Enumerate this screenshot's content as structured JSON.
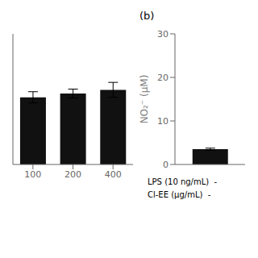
{
  "chart_data": [
    {
      "type": "bar",
      "categories": [
        "100",
        "200",
        "400"
      ],
      "values": [
        98,
        99,
        100
      ],
      "errors": [
        1.5,
        1.2,
        2.0
      ],
      "color": "#111111",
      "ylim": [
        80,
        115
      ],
      "yticks": [],
      "tick_labels": "x"
    },
    {
      "type": "bar",
      "title": "(b)",
      "categories": [
        null
      ],
      "values": [
        3.5
      ],
      "errors": [
        0.25
      ],
      "color": "#111111",
      "ylabel": "NO₂⁻ (μM)",
      "ylim": [
        0,
        30
      ],
      "yticks": [
        0,
        10,
        20,
        30
      ],
      "tick_labels": "y",
      "annotations": [
        "LPS (10 ng/mL)  -",
        "Cl-EE (μg/mL)  -"
      ]
    }
  ]
}
